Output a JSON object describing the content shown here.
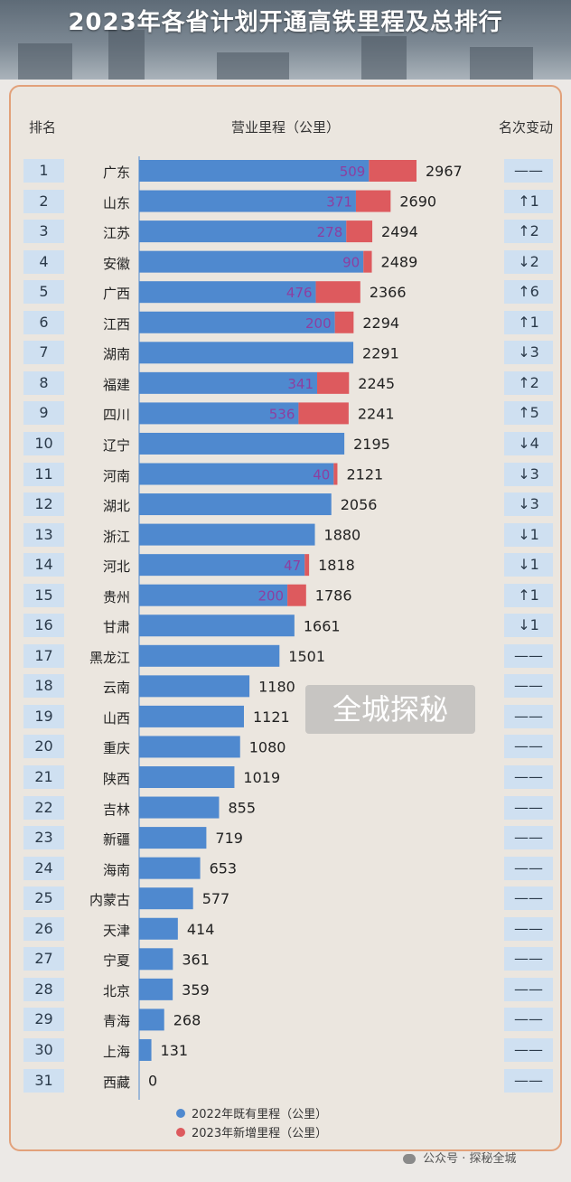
{
  "title": "2023年各省计划开通高铁里程及总排行",
  "headers": {
    "rank": "排名",
    "mileage": "营业里程（公里）",
    "change": "名次变动"
  },
  "colors": {
    "existing": "#4f89cf",
    "new": "#dd5a5e",
    "rank_bg": "#cfe0f1"
  },
  "watermark": "全城探秘",
  "footer": "公众号 · 探秘全城",
  "chart_data": {
    "type": "bar",
    "stacked": true,
    "orientation": "horizontal",
    "categories": [
      "广东",
      "山东",
      "江苏",
      "安徽",
      "广西",
      "江西",
      "湖南",
      "福建",
      "四川",
      "辽宁",
      "河南",
      "湖北",
      "浙江",
      "河北",
      "贵州",
      "甘肃",
      "黑龙江",
      "云南",
      "山西",
      "重庆",
      "陕西",
      "吉林",
      "新疆",
      "海南",
      "内蒙古",
      "天津",
      "宁夏",
      "北京",
      "青海",
      "上海",
      "西藏"
    ],
    "ranks": [
      "1",
      "2",
      "3",
      "4",
      "5",
      "6",
      "7",
      "8",
      "9",
      "10",
      "11",
      "12",
      "13",
      "14",
      "15",
      "16",
      "17",
      "18",
      "19",
      "20",
      "21",
      "22",
      "23",
      "24",
      "25",
      "26",
      "27",
      "28",
      "29",
      "30",
      "31"
    ],
    "totals": [
      "2967",
      "2690",
      "2494",
      "2489",
      "2366",
      "2294",
      "2291",
      "2245",
      "2241",
      "2195",
      "2121",
      "2056",
      "1880",
      "1818",
      "1786",
      "1661",
      "1501",
      "1180",
      "1121",
      "1080",
      "1019",
      "855",
      "719",
      "653",
      "577",
      "414",
      "361",
      "359",
      "268",
      "131",
      "0"
    ],
    "rank_change": [
      "——",
      "↑1",
      "↑2",
      "↓2",
      "↑6",
      "↑1",
      "↓3",
      "↑2",
      "↑5",
      "↓4",
      "↓3",
      "↓3",
      "↓1",
      "↓1",
      "↑1",
      "↓1",
      "——",
      "——",
      "——",
      "——",
      "——",
      "——",
      "——",
      "——",
      "——",
      "——",
      "——",
      "——",
      "——",
      "——",
      "——"
    ],
    "series": [
      {
        "name": "2022年既有里程（公里）",
        "values": [
          2458,
          2319,
          2216,
          2399,
          1890,
          2094,
          2291,
          1904,
          1705,
          2195,
          2081,
          2056,
          1880,
          1771,
          1586,
          1661,
          1501,
          1180,
          1121,
          1080,
          1019,
          855,
          719,
          653,
          577,
          414,
          361,
          359,
          268,
          131,
          0
        ]
      },
      {
        "name": "2023年新增里程（公里）",
        "values": [
          509,
          371,
          278,
          90,
          476,
          200,
          0,
          341,
          536,
          0,
          40,
          0,
          0,
          47,
          200,
          0,
          0,
          0,
          0,
          0,
          0,
          0,
          0,
          0,
          0,
          0,
          0,
          0,
          0,
          0,
          0
        ]
      }
    ],
    "xlim": [
      0,
      3000
    ]
  }
}
